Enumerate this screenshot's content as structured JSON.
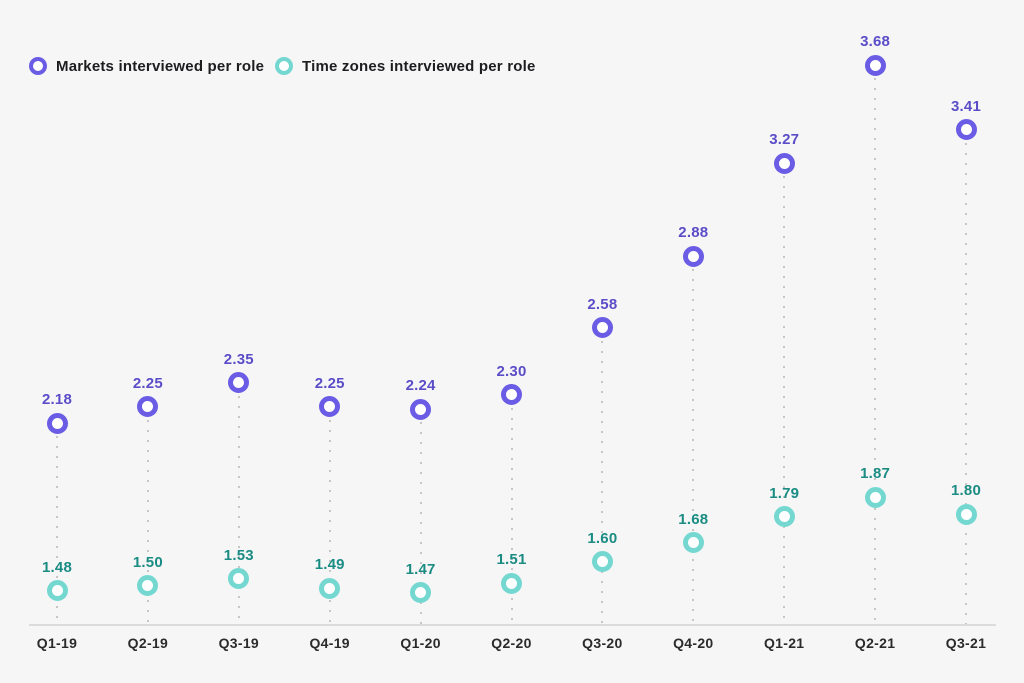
{
  "colors": {
    "background": "#f6f6f7",
    "axis_line": "#dcdcdc",
    "gridline_dots": "#c6c6c6",
    "x_label_text": "#2b2b2b",
    "legend_text": "#1d1d1f"
  },
  "legend": {
    "items": [
      {
        "label": "Markets interviewed per role",
        "marker_color": "#6a5ce4"
      },
      {
        "label": "Time zones interviewed per role",
        "marker_color": "#74d8d1"
      }
    ]
  },
  "chart_data": {
    "type": "scatter",
    "title": "",
    "xlabel": "",
    "ylabel": "",
    "categories": [
      "Q1-19",
      "Q2-19",
      "Q3-19",
      "Q4-19",
      "Q1-20",
      "Q2-20",
      "Q3-20",
      "Q4-20",
      "Q1-21",
      "Q2-21",
      "Q3-21"
    ],
    "series": [
      {
        "name": "Markets interviewed per role",
        "marker_color": "#6a5ce4",
        "label_color": "#5b4dc8",
        "values": [
          2.18,
          2.25,
          2.35,
          2.25,
          2.24,
          2.3,
          2.58,
          2.88,
          3.27,
          3.68,
          3.41
        ]
      },
      {
        "name": "Time zones interviewed per role",
        "marker_color": "#74d8d1",
        "label_color": "#1b8c83",
        "values": [
          1.48,
          1.5,
          1.53,
          1.49,
          1.47,
          1.51,
          1.6,
          1.68,
          1.79,
          1.87,
          1.8
        ]
      }
    ],
    "ylim": [
      1.34,
      3.79
    ],
    "grid": "vertical-dotted-per-category",
    "legend_position": "top-left",
    "data_labels": "above-points",
    "value_format": "0.00"
  }
}
